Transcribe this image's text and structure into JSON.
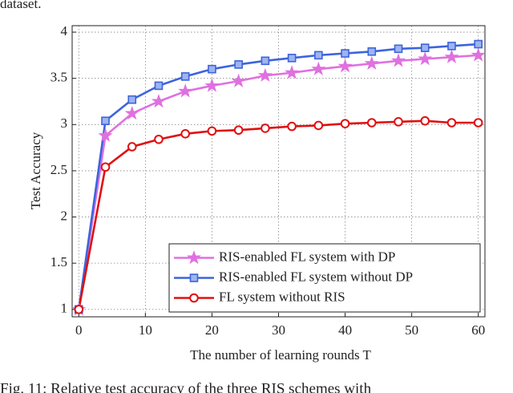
{
  "top_text": "dataset.",
  "caption": "Fig. 11: Relative test accuracy of the three RIS schemes with",
  "chart_data": {
    "type": "line",
    "xlabel": "The number of learning rounds T",
    "ylabel": "Test Accuracy",
    "x": [
      0,
      4,
      8,
      12,
      16,
      20,
      24,
      28,
      32,
      36,
      40,
      44,
      48,
      52,
      56,
      60
    ],
    "series": [
      {
        "name": "RIS-enabled FL system with DP",
        "color": "#e070e0",
        "marker": "star",
        "values": [
          1,
          2.88,
          3.12,
          3.25,
          3.36,
          3.42,
          3.47,
          3.53,
          3.56,
          3.6,
          3.63,
          3.66,
          3.69,
          3.71,
          3.73,
          3.75
        ]
      },
      {
        "name": "RIS-enabled FL system without DP",
        "color": "#3c64dc",
        "marker": "square",
        "values": [
          1,
          3.04,
          3.27,
          3.42,
          3.52,
          3.6,
          3.65,
          3.69,
          3.72,
          3.75,
          3.77,
          3.79,
          3.82,
          3.83,
          3.85,
          3.87
        ]
      },
      {
        "name": "FL system without RIS",
        "color": "#e01010",
        "marker": "circle",
        "values": [
          1,
          2.54,
          2.76,
          2.84,
          2.9,
          2.93,
          2.94,
          2.96,
          2.98,
          2.99,
          3.01,
          3.02,
          3.03,
          3.04,
          3.02,
          3.02
        ]
      }
    ],
    "xlim": [
      -1,
      61
    ],
    "ylim": [
      0.92,
      4.07
    ],
    "xticks": [
      0,
      10,
      20,
      30,
      40,
      50,
      60
    ],
    "yticks": [
      1,
      1.5,
      2,
      2.5,
      3,
      3.5,
      4
    ],
    "grid": true,
    "legend": "lower right"
  }
}
